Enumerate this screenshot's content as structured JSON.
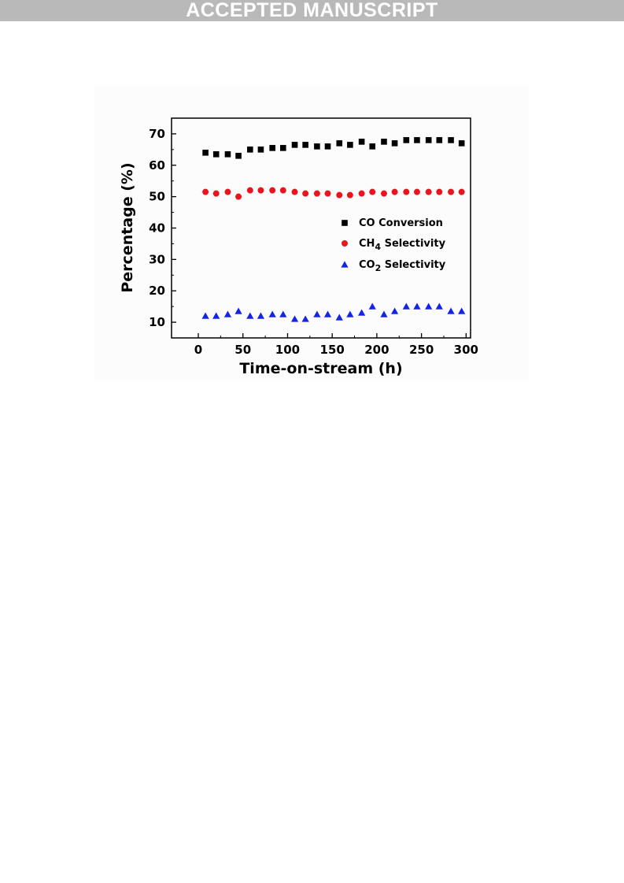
{
  "banner": {
    "text": "ACCEPTED MANUSCRIPT"
  },
  "chart_data": {
    "type": "scatter",
    "title": "",
    "xlabel": "Time-on-stream (h)",
    "ylabel": "Percentage (%)",
    "xlim": [
      -30,
      305
    ],
    "ylim": [
      5,
      75
    ],
    "xticks": [
      0,
      50,
      100,
      150,
      200,
      250,
      300
    ],
    "yticks": [
      10,
      20,
      30,
      40,
      50,
      60,
      70
    ],
    "grid": false,
    "legend_position": "center-right",
    "series": [
      {
        "name": "CO   Conversion",
        "label_parts": [
          {
            "t": "CO   Conversion",
            "sub": false
          }
        ],
        "marker": "square",
        "color": "#000000",
        "x": [
          8,
          20,
          33,
          45,
          58,
          70,
          83,
          95,
          108,
          120,
          133,
          145,
          158,
          170,
          183,
          195,
          208,
          220,
          233,
          245,
          258,
          270,
          283,
          295
        ],
        "y": [
          64,
          63.5,
          63.5,
          63,
          65,
          65,
          65.5,
          65.5,
          66.5,
          66.5,
          66,
          66,
          67,
          66.5,
          67.5,
          66,
          67.5,
          67,
          68,
          68,
          68,
          68,
          68,
          67
        ]
      },
      {
        "name": "CH4 Selectivity",
        "label_parts": [
          {
            "t": "CH",
            "sub": false
          },
          {
            "t": "4",
            "sub": true
          },
          {
            "t": " Selectivity",
            "sub": false
          }
        ],
        "marker": "circle",
        "color": "#e8141e",
        "x": [
          8,
          20,
          33,
          45,
          58,
          70,
          83,
          95,
          108,
          120,
          133,
          145,
          158,
          170,
          183,
          195,
          208,
          220,
          233,
          245,
          258,
          270,
          283,
          295
        ],
        "y": [
          51.5,
          51,
          51.5,
          50,
          52,
          52,
          52,
          52,
          51.5,
          51,
          51,
          51,
          50.5,
          50.5,
          51,
          51.5,
          51,
          51.5,
          51.5,
          51.5,
          51.5,
          51.5,
          51.5,
          51.5
        ]
      },
      {
        "name": "CO2 Selectivity",
        "label_parts": [
          {
            "t": "CO",
            "sub": false
          },
          {
            "t": "2",
            "sub": true
          },
          {
            "t": " Selectivity",
            "sub": false
          }
        ],
        "marker": "triangle",
        "color": "#1423e8",
        "x": [
          8,
          20,
          33,
          45,
          58,
          70,
          83,
          95,
          108,
          120,
          133,
          145,
          158,
          170,
          183,
          195,
          208,
          220,
          233,
          245,
          258,
          270,
          283,
          295
        ],
        "y": [
          12,
          12,
          12.5,
          13.5,
          12,
          12,
          12.5,
          12.5,
          11,
          11,
          12.5,
          12.5,
          11.5,
          12.5,
          13,
          15,
          12.5,
          13.5,
          15,
          15,
          15,
          15,
          13.5,
          13.5
        ]
      }
    ]
  }
}
